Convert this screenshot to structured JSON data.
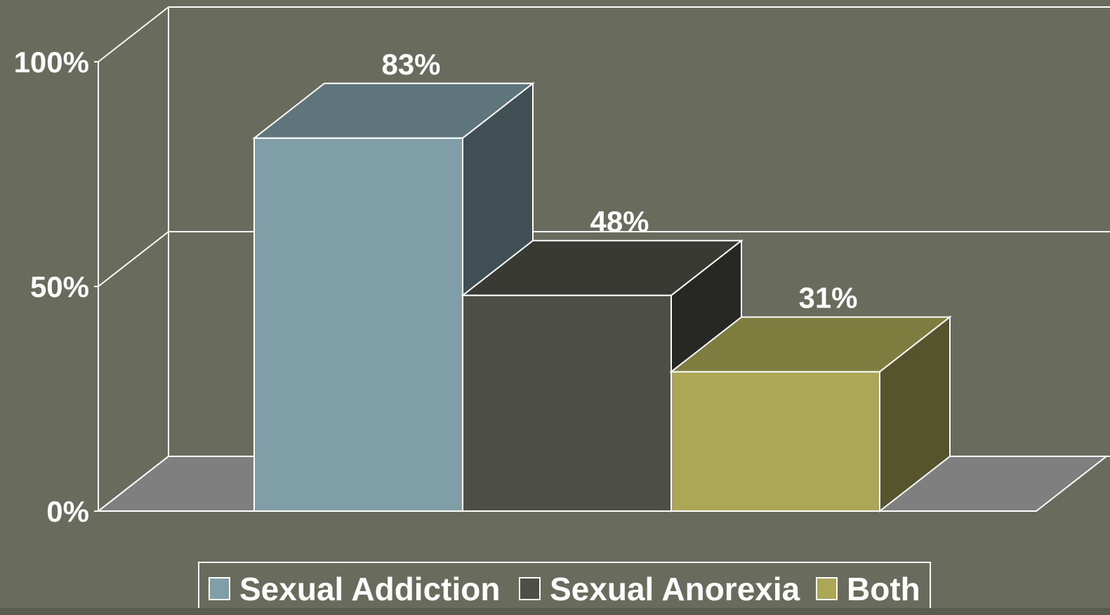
{
  "chart_data": {
    "type": "bar",
    "three_d": true,
    "categories": [
      "Sexual Addiction",
      "Sexual Anorexia",
      "Both"
    ],
    "values": [
      83,
      48,
      31
    ],
    "data_labels": [
      "83%",
      "48%",
      "31%"
    ],
    "ylim": [
      0,
      100
    ],
    "y_ticks": [
      {
        "value": 0,
        "label": "0%"
      },
      {
        "value": 50,
        "label": "50%"
      },
      {
        "value": 100,
        "label": "100%"
      }
    ],
    "grid": true,
    "legend_position": "bottom",
    "legend": [
      {
        "label": "Sexual Addiction",
        "color": "#809ea7"
      },
      {
        "label": "Sexual Anorexia",
        "color": "#4d4e45"
      },
      {
        "label": "Both",
        "color": "#aba757"
      }
    ],
    "colors": {
      "background": "#696b5c",
      "floor": "#7f7f7f",
      "axis_lines": "#ffffff"
    }
  }
}
